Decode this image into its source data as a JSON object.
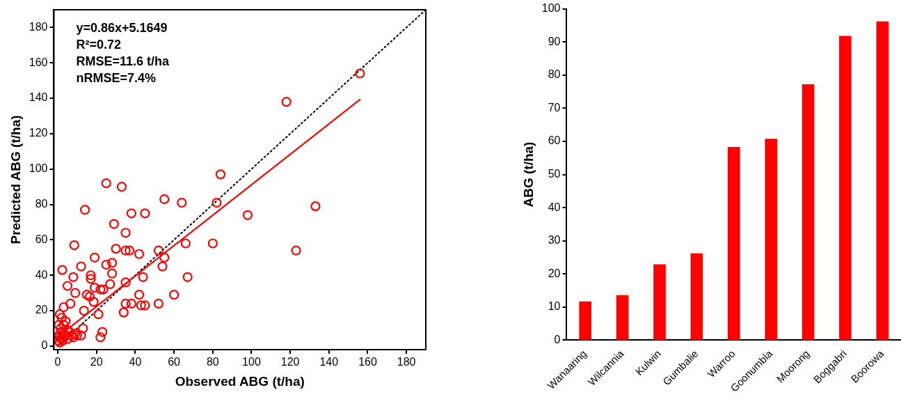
{
  "chart_data": [
    {
      "type": "scatter",
      "xlabel": "Observed ABG (t/ha)",
      "ylabel": "Predicted ABG (t/ha)",
      "xlim": [
        -2,
        190
      ],
      "ylim": [
        -2,
        190
      ],
      "xticks": [
        0,
        20,
        40,
        60,
        80,
        100,
        120,
        140,
        160,
        180
      ],
      "yticks": [
        0,
        20,
        40,
        60,
        80,
        100,
        120,
        140,
        160,
        180
      ],
      "grid": false,
      "legend": false,
      "marker": "circle",
      "annotations": [
        "y=0.86x+5.1649",
        "R²=0.72",
        "RMSE=11.6 t/ha",
        "nRMSE=7.4%"
      ],
      "series": [
        {
          "type": "scatter",
          "color": "#ff0000",
          "x": [
            156,
            118,
            133,
            123,
            98,
            84,
            82,
            80,
            25,
            33,
            14,
            55,
            64,
            38,
            45,
            29,
            35,
            8.5,
            30,
            35,
            37,
            42,
            52,
            55,
            54,
            66,
            67,
            19,
            12,
            2.3,
            25,
            28,
            8,
            17,
            17,
            28,
            35,
            44,
            5,
            9,
            15,
            19,
            22,
            23.5,
            27,
            16.5,
            3,
            6.5,
            13.5,
            18.5,
            21,
            34,
            35,
            38,
            43,
            45,
            42,
            52,
            60,
            23,
            22,
            13,
            12,
            10,
            8,
            1,
            2,
            4,
            0.5,
            1.5,
            3,
            5,
            2,
            6,
            0.5,
            1,
            3,
            4,
            7,
            9,
            2,
            5,
            0.3,
            1,
            2.5
          ],
          "values": [
            154,
            138,
            79,
            54,
            74,
            97,
            81,
            58,
            92,
            90,
            77,
            83,
            81,
            75,
            75,
            69,
            64,
            57,
            55,
            54,
            54,
            52,
            54,
            50,
            45,
            58,
            39,
            50,
            45,
            43,
            46,
            41,
            39,
            40,
            38,
            47,
            36,
            39,
            34,
            30,
            29,
            33,
            32,
            32,
            35,
            28,
            22,
            24,
            20,
            25,
            18,
            19,
            24,
            24,
            23,
            23,
            29,
            24,
            29,
            8,
            5,
            10,
            6,
            6,
            5,
            18,
            16,
            14,
            12,
            10,
            12,
            9,
            8,
            8,
            6,
            5,
            7,
            6,
            6,
            7,
            4,
            4,
            3,
            2,
            3
          ]
        },
        {
          "type": "line",
          "color": "#ff0000",
          "line_style": "solid",
          "marker": "none",
          "x": [
            0,
            156
          ],
          "values": [
            5.2,
            139.3
          ]
        },
        {
          "type": "line",
          "color": "#000000",
          "line_style": "dotted",
          "marker": "none",
          "x": [
            0,
            190
          ],
          "values": [
            0,
            190
          ]
        }
      ]
    },
    {
      "type": "bar",
      "ylabel": "ABG (t/ha)",
      "categories": [
        "Wanaaring",
        "Wilcannia",
        "Kulwin",
        "Gumbalie",
        "Warroo",
        "Goonumbla",
        "Moorong",
        "Boggabri",
        "Boorowa"
      ],
      "values": [
        11.7,
        13.6,
        22.9,
        26.2,
        58.3,
        60.8,
        77.2,
        91.8,
        96.2
      ],
      "color": "#ff0000",
      "ylim": [
        0,
        100
      ],
      "yticks": [
        0,
        10,
        20,
        30,
        40,
        50,
        60,
        70,
        80,
        90,
        100
      ],
      "grid": false,
      "legend": false
    }
  ]
}
